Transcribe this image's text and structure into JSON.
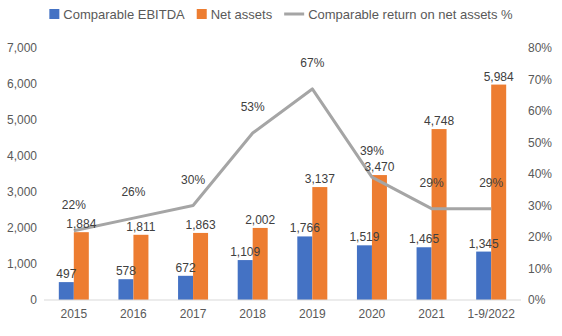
{
  "chart_data": {
    "type": "bar",
    "categories": [
      "2015",
      "2016",
      "2017",
      "2018",
      "2019",
      "2020",
      "2021",
      "1-9/2022"
    ],
    "series": [
      {
        "name": "Comparable EBITDA",
        "type": "bar",
        "color": "#4472c4",
        "values": [
          497,
          578,
          672,
          1109,
          1766,
          1519,
          1465,
          1345
        ],
        "value_labels": [
          "497",
          "578",
          "672",
          "1,109",
          "1,766",
          "1,519",
          "1,465",
          "1,345"
        ]
      },
      {
        "name": "Net assets",
        "type": "bar",
        "color": "#ed7d31",
        "values": [
          1884,
          1811,
          1863,
          2002,
          3137,
          3470,
          4748,
          5984
        ],
        "value_labels": [
          "1,884",
          "1,811",
          "1,863",
          "2,002",
          "3,137",
          "3,470",
          "4,748",
          "5,984"
        ]
      },
      {
        "name": "Comparable return on net assets %",
        "type": "line",
        "axis": "y2",
        "color": "#a5a5a5",
        "values": [
          22,
          26,
          30,
          53,
          67,
          39,
          29,
          29
        ],
        "value_labels": [
          "22%",
          "26%",
          "30%",
          "53%",
          "67%",
          "39%",
          "29%",
          "29%"
        ]
      }
    ],
    "ylim": [
      0,
      7000
    ],
    "yticks": [
      0,
      {
        "value": 1000,
        "label": "1,000"
      },
      {
        "value": 2000,
        "label": "2,000"
      },
      {
        "value": 3000,
        "label": "3,000"
      },
      {
        "value": 4000,
        "label": "4,000"
      },
      {
        "value": 5000,
        "label": "5,000"
      },
      {
        "value": 6000,
        "label": "6,000"
      },
      {
        "value": 7000,
        "label": "7,000"
      }
    ],
    "y2lim": [
      0,
      80
    ],
    "y2ticks": [
      {
        "value": 0,
        "label": "0%"
      },
      {
        "value": 10,
        "label": "10%"
      },
      {
        "value": 20,
        "label": "20%"
      },
      {
        "value": 30,
        "label": "30%"
      },
      {
        "value": 40,
        "label": "40%"
      },
      {
        "value": 50,
        "label": "50%"
      },
      {
        "value": 60,
        "label": "60%"
      },
      {
        "value": 70,
        "label": "70%"
      },
      {
        "value": 80,
        "label": "80%"
      }
    ],
    "data_labels": true,
    "legend": "top",
    "grid": false
  }
}
